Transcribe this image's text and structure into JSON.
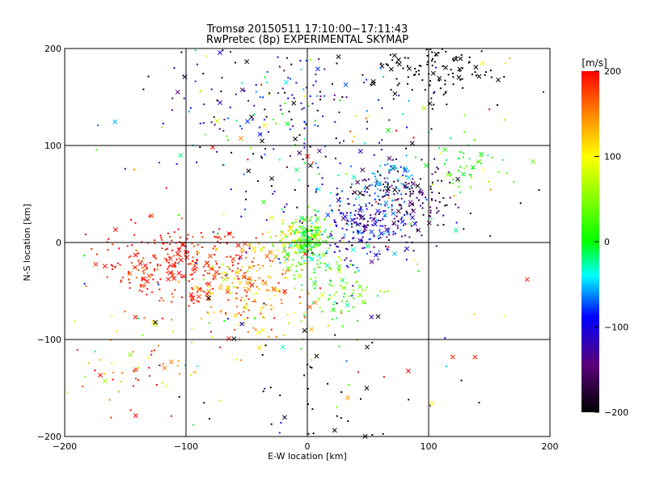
{
  "chart_data": {
    "type": "scatter",
    "title": "Tromsø 20150511 17:10:00−17:11:43",
    "subtitle": "RwPretec (8p) EXPERIMENTAL SKYMAP",
    "xlabel": "E-W location [km]",
    "ylabel": "N-S location [km]",
    "xlim": [
      -200,
      200
    ],
    "ylim": [
      -200,
      200
    ],
    "x_ticks": [
      -200,
      -100,
      0,
      100,
      200
    ],
    "y_ticks": [
      -200,
      -100,
      0,
      100,
      200
    ],
    "x_tick_labels": [
      "−200",
      "−100",
      "0",
      "100",
      "200"
    ],
    "y_tick_labels": [
      "−200",
      "−100",
      "0",
      "100",
      "200"
    ],
    "grid": true,
    "colorbar": {
      "label": "[m/s]",
      "range": [
        -200,
        200
      ],
      "ticks": [
        200,
        100,
        0,
        -100,
        -200
      ],
      "tick_labels": [
        "200",
        "100",
        "0",
        "−100",
        "−200"
      ],
      "colors": [
        "#000000",
        "#5a007a",
        "#0000ff",
        "#00ffff",
        "#00ff00",
        "#ffff00",
        "#ff8000",
        "#ff0000"
      ]
    },
    "clusters": [
      {
        "name": "west-red",
        "cx": -110,
        "cy": -20,
        "sx": 30,
        "sy": 20,
        "n": 260,
        "v": 190,
        "dv": 15
      },
      {
        "name": "southwest-orange",
        "cx": -50,
        "cy": -50,
        "sx": 25,
        "sy": 25,
        "n": 220,
        "v": 140,
        "dv": 40
      },
      {
        "name": "center-green",
        "cx": 0,
        "cy": 0,
        "sx": 10,
        "sy": 14,
        "n": 180,
        "v": 10,
        "dv": 30
      },
      {
        "name": "center-yellow",
        "cx": -10,
        "cy": 5,
        "sx": 14,
        "sy": 10,
        "n": 80,
        "v": 90,
        "dv": 20
      },
      {
        "name": "east-blue",
        "cx": 45,
        "cy": 15,
        "sx": 22,
        "sy": 18,
        "n": 200,
        "v": -110,
        "dv": 30
      },
      {
        "name": "northeast-violet",
        "cx": 80,
        "cy": 50,
        "sx": 25,
        "sy": 20,
        "n": 170,
        "v": -170,
        "dv": 25
      },
      {
        "name": "north-cyan",
        "cx": 65,
        "cy": 60,
        "sx": 12,
        "sy": 12,
        "n": 60,
        "v": -60,
        "dv": 15
      },
      {
        "name": "north-black",
        "cx": 100,
        "cy": 180,
        "sx": 25,
        "sy": 15,
        "n": 120,
        "v": -200,
        "dv": 5
      },
      {
        "name": "north-mixed",
        "cx": -10,
        "cy": 130,
        "sx": 50,
        "sy": 40,
        "n": 220,
        "v": -120,
        "dv": 70
      },
      {
        "name": "south-green",
        "cx": 25,
        "cy": -50,
        "sx": 20,
        "sy": 20,
        "n": 80,
        "v": 30,
        "dv": 30
      },
      {
        "name": "east-green",
        "cx": 130,
        "cy": 80,
        "sx": 15,
        "sy": 15,
        "n": 50,
        "v": 20,
        "dv": 30
      },
      {
        "name": "southwest-mixed",
        "cx": -140,
        "cy": -120,
        "sx": 30,
        "sy": 30,
        "n": 60,
        "v": 160,
        "dv": 60
      },
      {
        "name": "south-black",
        "cx": 20,
        "cy": -150,
        "sx": 50,
        "sy": 30,
        "n": 40,
        "v": -200,
        "dv": 10
      },
      {
        "name": "scatter-background",
        "cx": 0,
        "cy": 0,
        "sx": 110,
        "sy": 110,
        "n": 200,
        "v": 0,
        "dv": 140
      }
    ]
  }
}
